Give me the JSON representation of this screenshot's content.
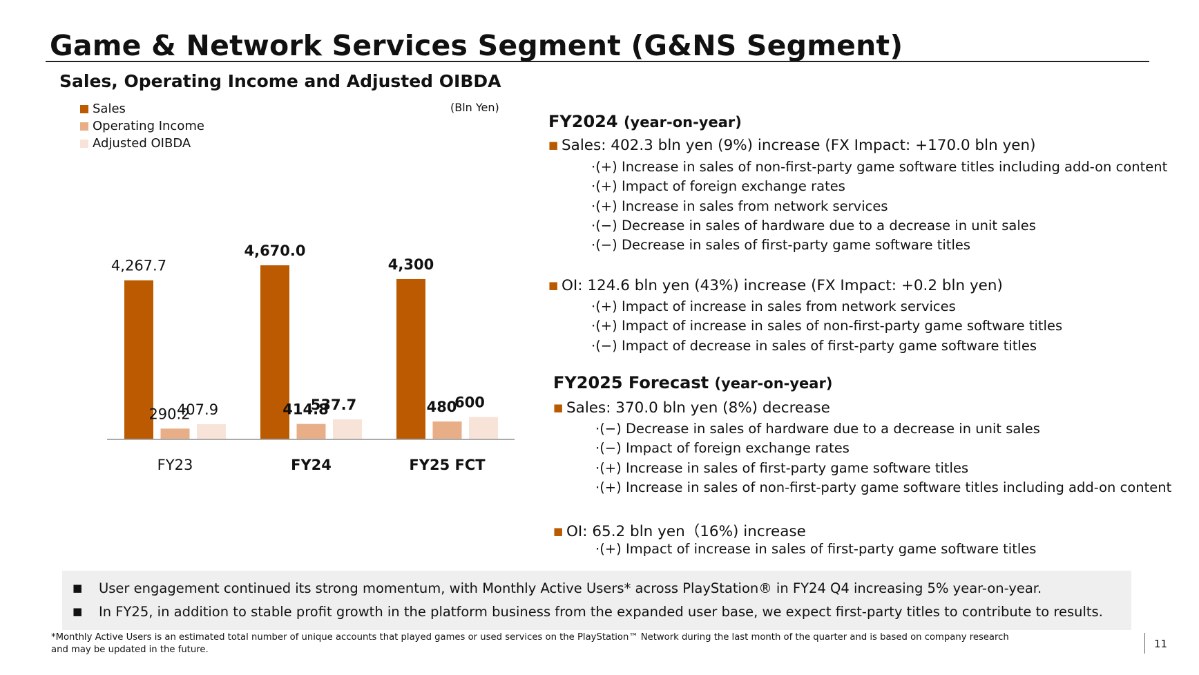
{
  "title": "Game & Network Services Segment (G&NS Segment)",
  "subtitle": "Sales, Operating Income and Adjusted OIBDA",
  "unit": "(Bln Yen)",
  "colors": {
    "sales": "#bb5a00",
    "operating_income": "#e8ae88",
    "adjusted_oibda": "#f8e3d8",
    "bullet": "#b85a00"
  },
  "legend": [
    "Sales",
    "Operating Income",
    "Adjusted OIBDA"
  ],
  "chart_data": {
    "type": "bar",
    "categories": [
      "FY23",
      "FY24",
      "FY25 FCT"
    ],
    "category_bold": [
      false,
      true,
      true
    ],
    "series": [
      {
        "name": "Sales",
        "values": [
          4267.7,
          4670.0,
          4300
        ],
        "labels": [
          "4,267.7",
          "4,670.0",
          "4,300"
        ]
      },
      {
        "name": "Operating Income",
        "values": [
          290.2,
          414.8,
          480
        ],
        "labels": [
          "290.2",
          "414.8",
          "480"
        ]
      },
      {
        "name": "Adjusted OIBDA",
        "values": [
          407.9,
          537.7,
          600
        ],
        "labels": [
          "407.9",
          "537.7",
          "600"
        ]
      }
    ],
    "ylim": [
      0,
      4670.0
    ],
    "xlabel": "",
    "ylabel": "",
    "grid": false
  },
  "fy2024": {
    "heading": "FY2024",
    "heading_suffix": "(year-on-year)",
    "sales": {
      "text": "Sales: 402.3 bln yen (9%) increase (FX Impact: +170.0 bln yen)",
      "items": [
        "·(+) Increase in sales of non-first-party game software titles including add-on content",
        "·(+) Impact of foreign exchange rates",
        "·(+) Increase in sales from network services",
        "·(−) Decrease in sales of hardware due to a decrease in unit sales",
        "·(−) Decrease in sales of first-party game software titles"
      ]
    },
    "oi": {
      "text": "OI: 124.6 bln yen (43%) increase (FX Impact: +0.2 bln yen)",
      "items": [
        "·(+) Impact of increase in sales from network services",
        "·(+) Impact of increase in sales of non-first-party game software titles",
        "·(−) Impact of decrease in sales of first-party game software titles"
      ]
    }
  },
  "fy2025": {
    "heading": "FY2025 Forecast",
    "heading_suffix": "(year-on-year)",
    "sales": {
      "text": "Sales: 370.0 bln yen (8%) decrease",
      "items": [
        "·(−) Decrease in sales of hardware due to a decrease in unit sales",
        "·(−) Impact of foreign exchange rates",
        "·(+) Increase in sales of first-party game software titles",
        "·(+) Increase in sales of non-first-party game software titles including add-on content"
      ]
    },
    "oi": {
      "text": "OI: 65.2 bln yen（16%) increase",
      "items": [
        "·(+) Impact of increase in sales of first-party game software titles"
      ]
    }
  },
  "notes": {
    "bullet": "■",
    "line1": "User engagement continued its strong momentum, with Monthly Active Users* across PlayStation® in FY24 Q4 increasing 5% year-on-year.",
    "line2": "In FY25, in addition to stable profit growth in the platform business from the expanded user base, we expect first-party titles to contribute to results."
  },
  "footnote": {
    "line1": "*Monthly Active Users is an estimated total number of unique accounts that played games or used services on the PlayStation™ Network during the last month of the quarter and is based on company research",
    "line2": "and may be updated in the future."
  },
  "page_number": "11"
}
